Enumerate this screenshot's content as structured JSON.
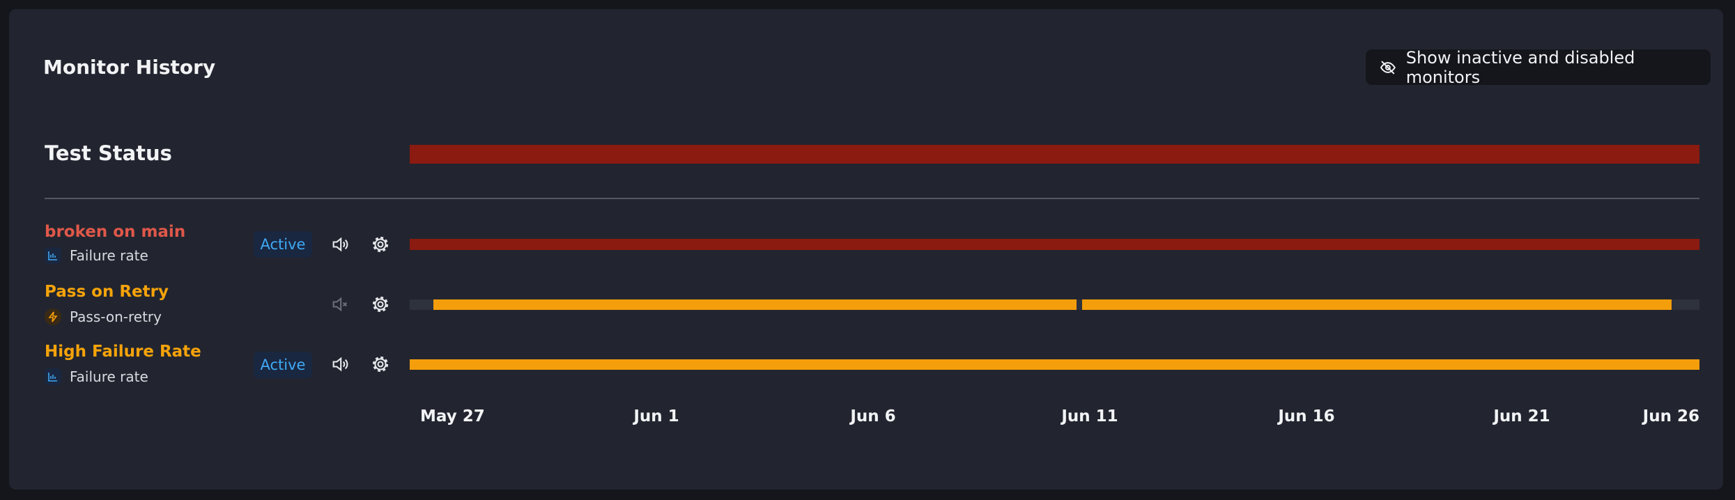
{
  "header": {
    "title": "Monitor History",
    "button": "Show inactive and disabled monitors"
  },
  "test_status": {
    "label": "Test Status"
  },
  "monitors": [
    {
      "name": "broken on main",
      "type": "Failure rate",
      "status": "Active"
    },
    {
      "name": "Pass on Retry",
      "type": "Pass-on-retry"
    },
    {
      "name": "High Failure Rate",
      "type": "Failure rate",
      "status": "Active"
    }
  ],
  "dates": [
    "May 27",
    "Jun 1",
    "Jun 6",
    "Jun 11",
    "Jun 16",
    "Jun 21",
    "Jun 26"
  ]
}
